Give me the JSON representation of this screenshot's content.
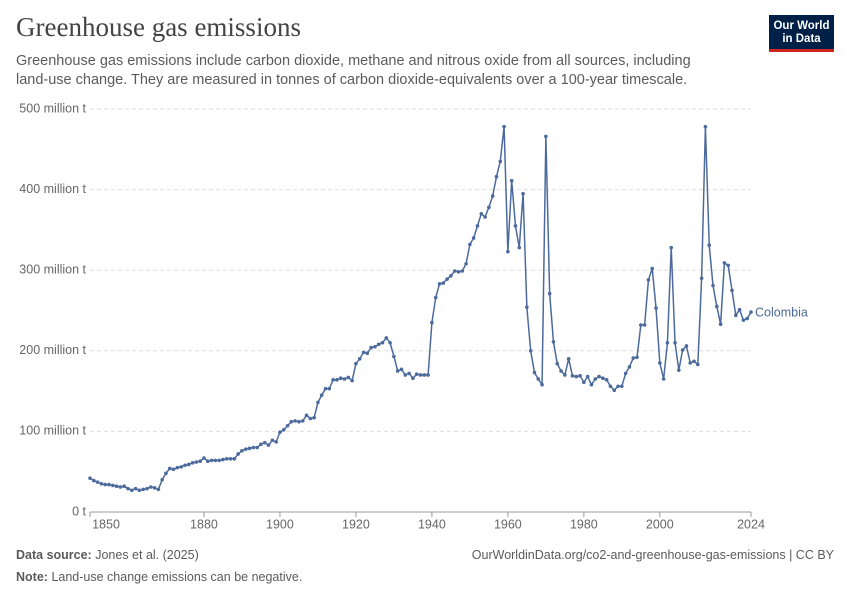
{
  "chart_data": {
    "type": "line",
    "title": "Greenhouse gas emissions",
    "subtitle": "Greenhouse gas emissions include carbon dioxide, methane and nitrous oxide from all sources, including land-use change. They are measured in tonnes of carbon dioxide-equivalents over a 100-year timescale.",
    "logo": "Our World in Data",
    "source_label": "Data source:",
    "source": "Jones et al. (2025)",
    "url": "OurWorldinData.org/co2-and-greenhouse-gas-emissions | CC BY",
    "note_label": "Note:",
    "note": "Land-use change emissions can be negative.",
    "x": [
      1850,
      1851,
      1852,
      1853,
      1854,
      1855,
      1856,
      1857,
      1858,
      1859,
      1860,
      1861,
      1862,
      1863,
      1864,
      1865,
      1866,
      1867,
      1868,
      1869,
      1870,
      1871,
      1872,
      1873,
      1874,
      1875,
      1876,
      1877,
      1878,
      1879,
      1880,
      1881,
      1882,
      1883,
      1884,
      1885,
      1886,
      1887,
      1888,
      1889,
      1890,
      1891,
      1892,
      1893,
      1894,
      1895,
      1896,
      1897,
      1898,
      1899,
      1900,
      1901,
      1902,
      1903,
      1904,
      1905,
      1906,
      1907,
      1908,
      1909,
      1910,
      1911,
      1912,
      1913,
      1914,
      1915,
      1916,
      1917,
      1918,
      1919,
      1920,
      1921,
      1922,
      1923,
      1924,
      1925,
      1926,
      1927,
      1928,
      1929,
      1930,
      1931,
      1932,
      1933,
      1934,
      1935,
      1936,
      1937,
      1938,
      1939,
      1940,
      1941,
      1942,
      1943,
      1944,
      1945,
      1946,
      1947,
      1948,
      1949,
      1950,
      1951,
      1952,
      1953,
      1954,
      1955,
      1956,
      1957,
      1958,
      1959,
      1960,
      1961,
      1962,
      1963,
      1964,
      1965,
      1966,
      1967,
      1968,
      1969,
      1970,
      1971,
      1972,
      1973,
      1974,
      1975,
      1976,
      1977,
      1978,
      1979,
      1980,
      1981,
      1982,
      1983,
      1984,
      1985,
      1986,
      1987,
      1988,
      1989,
      1990,
      1991,
      1992,
      1993,
      1994,
      1995,
      1996,
      1997,
      1998,
      1999,
      2000,
      2001,
      2002,
      2003,
      2004,
      2005,
      2006,
      2007,
      2008,
      2009,
      2010,
      2011,
      2012,
      2013,
      2014,
      2015,
      2016,
      2017,
      2018,
      2019,
      2020,
      2021,
      2022,
      2023,
      2024
    ],
    "series": [
      {
        "name": "Colombia",
        "color": "#4c6a9c",
        "values": [
          42,
          39,
          37,
          35,
          34,
          34,
          33,
          32,
          31,
          32,
          29,
          27,
          29,
          27,
          28,
          29,
          31,
          30,
          28,
          40,
          48,
          54,
          53,
          55,
          56,
          58,
          59,
          61,
          62,
          63,
          67,
          63,
          64,
          64,
          64,
          65,
          66,
          66,
          66,
          72,
          76,
          78,
          79,
          80,
          80,
          84,
          86,
          83,
          89,
          87,
          99,
          102,
          107,
          112,
          113,
          112,
          113,
          120,
          116,
          117,
          136,
          145,
          153,
          153,
          164,
          164,
          166,
          165,
          167,
          163,
          184,
          190,
          198,
          197,
          204,
          205,
          208,
          210,
          216,
          210,
          193,
          175,
          177,
          170,
          172,
          166,
          171,
          170,
          170,
          170,
          235,
          266,
          283,
          284,
          289,
          293,
          299,
          298,
          299,
          308,
          332,
          340,
          355,
          370,
          366,
          378,
          392,
          416,
          435,
          478,
          323,
          411,
          355,
          328,
          395,
          254,
          200,
          173,
          165,
          158,
          466,
          271,
          211,
          184,
          175,
          170,
          190,
          169,
          168,
          169,
          161,
          168,
          158,
          165,
          168,
          166,
          164,
          156,
          151,
          156,
          156,
          172,
          180,
          191,
          192,
          232,
          232,
          288,
          302,
          253,
          185,
          165,
          210,
          328,
          210,
          176,
          201,
          206,
          185,
          187,
          183,
          290,
          478,
          331,
          281,
          255,
          233,
          309,
          306,
          275,
          244,
          251,
          238,
          240,
          248
        ]
      }
    ],
    "xlim": [
      1850,
      2024
    ],
    "xticks": [
      1850,
      1880,
      1900,
      1920,
      1940,
      1960,
      1980,
      2000,
      2024
    ],
    "ylim": [
      0,
      500
    ],
    "yticks": [
      {
        "value": 0,
        "label": "0 t"
      },
      {
        "value": 100,
        "label": "100 million t"
      },
      {
        "value": 200,
        "label": "200 million t"
      },
      {
        "value": 300,
        "label": "300 million t"
      },
      {
        "value": 400,
        "label": "400 million t"
      },
      {
        "value": 500,
        "label": "500 million t"
      }
    ],
    "grid": true
  }
}
